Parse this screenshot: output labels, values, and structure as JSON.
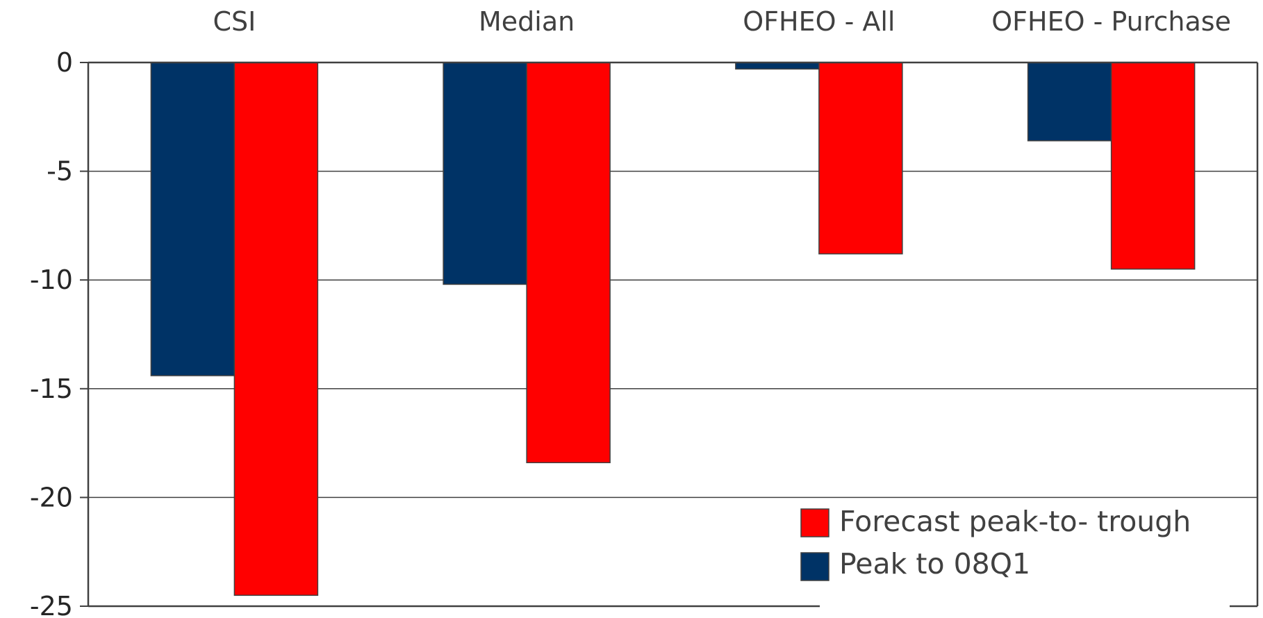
{
  "chart_data": {
    "type": "bar",
    "categories": [
      "CSI",
      "Median",
      "OFHEO - All",
      "OFHEO - Purchase"
    ],
    "category_axis_position": "top",
    "series": [
      {
        "name": "Peak to 08Q1",
        "color": "#003366",
        "values": [
          -14.4,
          -10.2,
          -0.3,
          -3.6
        ]
      },
      {
        "name": "Forecast peak-to- trough",
        "color": "#ff0000",
        "values": [
          -24.5,
          -18.4,
          -8.8,
          -9.5
        ]
      }
    ],
    "ylim": [
      -25,
      0
    ],
    "yticks": [
      0,
      -5,
      -10,
      -15,
      -20,
      -25
    ],
    "grid": true,
    "legend": {
      "placement": "bottom-right",
      "entries": [
        {
          "label": "Forecast peak-to- trough",
          "color": "#ff0000"
        },
        {
          "label": "Peak to 08Q1",
          "color": "#003366"
        }
      ]
    },
    "title": "",
    "xlabel": "",
    "ylabel": ""
  }
}
